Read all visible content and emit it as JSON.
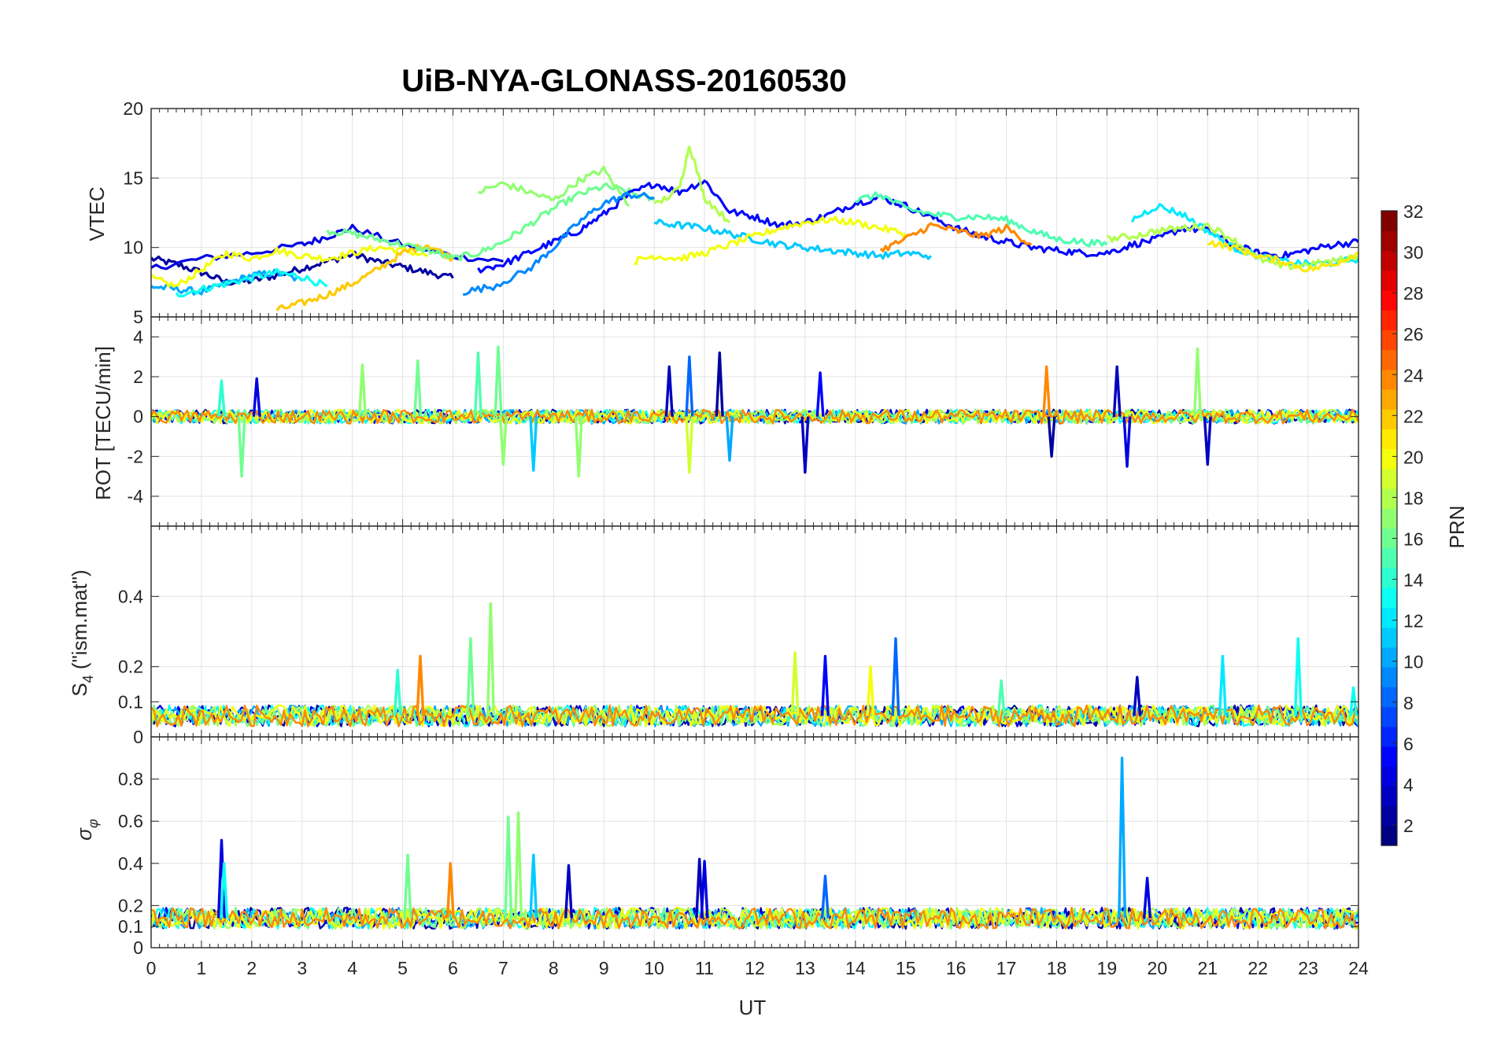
{
  "chart_data": [
    {
      "type": "line",
      "panel": "vtec",
      "title": "UiB-NYA-GLONASS-20160530",
      "xlabel": "",
      "ylabel": "VTEC",
      "xlim": [
        0,
        24
      ],
      "ylim": [
        5,
        20
      ],
      "yticks": [
        "5",
        "10",
        "15",
        "20"
      ],
      "grid": true,
      "series": [
        {
          "prn": 2,
          "x": [
            0,
            0.5,
            1,
            1.5,
            2,
            2.5,
            3,
            3.5,
            4,
            4.5,
            5,
            5.5,
            6
          ],
          "y": [
            9.2,
            8.8,
            8.2,
            7.5,
            7.6,
            8.0,
            8.5,
            9.0,
            9.5,
            9.0,
            8.6,
            8.2,
            7.8
          ]
        },
        {
          "prn": 4,
          "x": [
            0,
            1,
            2,
            3,
            3.5,
            4,
            5,
            6,
            7
          ],
          "y": [
            8.5,
            9.2,
            9.6,
            10.2,
            10.8,
            11.4,
            10.2,
            9.4,
            9.0
          ]
        },
        {
          "prn": 10,
          "x": [
            0,
            0.5,
            1,
            1.5,
            2,
            2.5,
            3
          ],
          "y": [
            7.2,
            7.0,
            6.8,
            7.4,
            8.0,
            8.2,
            7.6
          ]
        },
        {
          "prn": 13,
          "x": [
            0.5,
            1,
            1.5,
            2,
            2.5,
            3,
            3.5
          ],
          "y": [
            6.6,
            7.0,
            7.4,
            7.8,
            8.2,
            7.9,
            7.2
          ]
        },
        {
          "prn": 20,
          "x": [
            0,
            0.5,
            1,
            1.5,
            2,
            2.5,
            3,
            3.5,
            4,
            4.5,
            5,
            5.5
          ],
          "y": [
            7.8,
            7.2,
            8.4,
            9.6,
            9.2,
            9.8,
            9.4,
            9.2,
            9.6,
            10.0,
            9.8,
            9.4
          ]
        },
        {
          "prn": 22,
          "x": [
            2.5,
            3,
            3.5,
            4,
            4.5,
            5,
            5.5,
            6
          ],
          "y": [
            5.5,
            6.0,
            6.6,
            7.4,
            8.4,
            9.6,
            10.2,
            9.2
          ]
        },
        {
          "prn": 16,
          "x": [
            3.5,
            4,
            4.5,
            5,
            5.5,
            6,
            6.5,
            7,
            7.5,
            8,
            8.5,
            9,
            9.5,
            10
          ],
          "y": [
            11.2,
            11.0,
            10.6,
            10.2,
            9.8,
            9.2,
            9.6,
            10.4,
            11.6,
            12.8,
            13.8,
            14.4,
            14.0,
            13.4
          ]
        },
        {
          "prn": 5,
          "x": [
            6.5,
            7,
            7.5,
            8,
            8.5,
            9,
            9.5,
            10,
            10.5,
            11,
            11.5,
            12,
            12.5,
            13,
            13.5,
            14,
            14.5,
            15,
            15.5,
            16,
            16.5,
            17,
            17.5,
            18,
            18.5,
            19,
            19.5,
            20,
            20.5,
            21,
            21.5,
            22,
            22.5,
            23,
            23.5,
            24
          ],
          "y": [
            8.4,
            8.8,
            9.6,
            10.4,
            11.2,
            12.4,
            13.8,
            14.6,
            14.0,
            14.8,
            12.6,
            12.2,
            11.6,
            11.8,
            12.4,
            13.2,
            13.6,
            13.0,
            12.2,
            11.4,
            10.8,
            10.4,
            10.0,
            9.8,
            9.6,
            9.6,
            10.2,
            10.6,
            11.4,
            11.2,
            10.2,
            9.6,
            9.4,
            9.8,
            10.2,
            10.4
          ]
        },
        {
          "prn": 17,
          "x": [
            6.5,
            7,
            7.5,
            8,
            8.5,
            9,
            9.5
          ],
          "y": [
            14.0,
            14.6,
            14.0,
            13.4,
            14.8,
            15.6,
            13.0
          ]
        },
        {
          "prn": 9,
          "x": [
            6.2,
            6.8,
            7.5,
            8,
            8.5,
            9,
            9.5,
            10
          ],
          "y": [
            6.8,
            7.2,
            8.4,
            10.0,
            11.8,
            13.2,
            13.8,
            13.6
          ]
        },
        {
          "prn": 11,
          "x": [
            10,
            10.5,
            11,
            11.5,
            12,
            12.5,
            13,
            13.5,
            14,
            14.5,
            15,
            15.5
          ],
          "y": [
            11.8,
            11.6,
            11.4,
            11.0,
            10.6,
            10.2,
            10.0,
            9.8,
            9.6,
            9.4,
            9.6,
            9.4
          ]
        },
        {
          "prn": 18,
          "x": [
            10,
            10.5,
            10.7,
            11,
            11.5
          ],
          "y": [
            13.0,
            14.2,
            17.4,
            13.6,
            11.8
          ]
        },
        {
          "prn": 20,
          "x": [
            9.6,
            10,
            10.5,
            11,
            11.5,
            12,
            12.5,
            13,
            13.5,
            14,
            14.5,
            15
          ],
          "y": [
            9.0,
            9.4,
            9.2,
            9.6,
            10.2,
            10.8,
            11.4,
            11.8,
            12.0,
            11.8,
            11.4,
            11.0
          ]
        },
        {
          "prn": 24,
          "x": [
            14.5,
            15,
            15.5,
            16,
            16.5,
            17,
            17.5
          ],
          "y": [
            9.8,
            10.6,
            11.6,
            11.2,
            10.8,
            11.4,
            10.2
          ]
        },
        {
          "prn": 15,
          "x": [
            14,
            14.5,
            15,
            15.5,
            16,
            16.5,
            17,
            17.5,
            18,
            18.5,
            19
          ],
          "y": [
            13.4,
            13.8,
            12.8,
            12.4,
            12.2,
            12.2,
            12.0,
            11.2,
            10.6,
            10.4,
            10.2
          ]
        },
        {
          "prn": 12,
          "x": [
            19.5,
            20,
            20.5,
            21,
            21.5,
            22,
            22.5,
            23,
            23.5,
            24
          ],
          "y": [
            12.0,
            13.0,
            12.4,
            11.2,
            10.0,
            9.4,
            9.0,
            8.8,
            8.9,
            9.2
          ]
        },
        {
          "prn": 18,
          "x": [
            19,
            19.5,
            20,
            20.5,
            21,
            21.5,
            22,
            22.5,
            23,
            23.5,
            24
          ],
          "y": [
            10.6,
            10.8,
            11.2,
            11.4,
            11.6,
            10.6,
            9.2,
            8.6,
            8.8,
            9.0,
            9.4
          ]
        },
        {
          "prn": 21,
          "x": [
            21,
            21.5,
            22,
            22.5,
            23,
            23.5,
            24
          ],
          "y": [
            10.4,
            10.0,
            9.4,
            9.0,
            8.4,
            8.8,
            9.6
          ]
        }
      ]
    },
    {
      "type": "line",
      "panel": "rot",
      "xlabel": "",
      "ylabel": "ROT [TECU/min]",
      "xlim": [
        0,
        24
      ],
      "ylim": [
        -5.5,
        5
      ],
      "yticks": [
        "-4",
        "-2",
        "0",
        "2",
        "4"
      ],
      "grid": true,
      "peaks": [
        {
          "x": 1.4,
          "y": 1.8,
          "prn": 14
        },
        {
          "x": 1.8,
          "y": -3.0,
          "prn": 16
        },
        {
          "x": 2.1,
          "y": 1.9,
          "prn": 4
        },
        {
          "x": 4.2,
          "y": 2.6,
          "prn": 17
        },
        {
          "x": 5.3,
          "y": 2.8,
          "prn": 16
        },
        {
          "x": 6.5,
          "y": 3.2,
          "prn": 15
        },
        {
          "x": 6.9,
          "y": 3.5,
          "prn": 16
        },
        {
          "x": 7.0,
          "y": -2.4,
          "prn": 17
        },
        {
          "x": 7.6,
          "y": -2.7,
          "prn": 11
        },
        {
          "x": 8.5,
          "y": -3.0,
          "prn": 17
        },
        {
          "x": 10.3,
          "y": 2.5,
          "prn": 3
        },
        {
          "x": 10.7,
          "y": 3.0,
          "prn": 8
        },
        {
          "x": 10.7,
          "y": -2.8,
          "prn": 19
        },
        {
          "x": 11.5,
          "y": -2.2,
          "prn": 10
        },
        {
          "x": 11.3,
          "y": 3.2,
          "prn": 2
        },
        {
          "x": 13.0,
          "y": -2.8,
          "prn": 3
        },
        {
          "x": 13.3,
          "y": 2.2,
          "prn": 5
        },
        {
          "x": 17.8,
          "y": 2.5,
          "prn": 24
        },
        {
          "x": 17.9,
          "y": -2.0,
          "prn": 2
        },
        {
          "x": 19.2,
          "y": 2.5,
          "prn": 3
        },
        {
          "x": 19.4,
          "y": -2.5,
          "prn": 4
        },
        {
          "x": 20.8,
          "y": 3.4,
          "prn": 17
        },
        {
          "x": 21.0,
          "y": -2.4,
          "prn": 3
        }
      ]
    },
    {
      "type": "line",
      "panel": "s4",
      "xlabel": "",
      "ylabel": "S4 (\"ism.mat\")",
      "ylabel_parts": {
        "main": "S",
        "sub": "4",
        "rest": " (\"ism.mat\")"
      },
      "xlim": [
        0,
        24
      ],
      "ylim": [
        0,
        0.6
      ],
      "yticks": [
        "0",
        "0.1",
        "0.2",
        "0.4"
      ],
      "grid": true,
      "peaks": [
        {
          "x": 4.9,
          "y": 0.19,
          "prn": 14
        },
        {
          "x": 5.35,
          "y": 0.23,
          "prn": 24
        },
        {
          "x": 6.35,
          "y": 0.28,
          "prn": 16
        },
        {
          "x": 6.75,
          "y": 0.38,
          "prn": 17
        },
        {
          "x": 12.8,
          "y": 0.24,
          "prn": 19
        },
        {
          "x": 13.4,
          "y": 0.23,
          "prn": 5
        },
        {
          "x": 14.3,
          "y": 0.2,
          "prn": 20
        },
        {
          "x": 14.8,
          "y": 0.28,
          "prn": 8
        },
        {
          "x": 16.9,
          "y": 0.16,
          "prn": 15
        },
        {
          "x": 19.6,
          "y": 0.17,
          "prn": 3
        },
        {
          "x": 21.3,
          "y": 0.23,
          "prn": 12
        },
        {
          "x": 22.8,
          "y": 0.28,
          "prn": 13
        },
        {
          "x": 23.9,
          "y": 0.14,
          "prn": 13
        }
      ]
    },
    {
      "type": "line",
      "panel": "sigma-phi",
      "xlabel": "UT",
      "ylabel": "σφ",
      "ylabel_parts": {
        "main": "σ",
        "sub": "φ"
      },
      "xlim": [
        0,
        24
      ],
      "ylim": [
        0,
        1
      ],
      "yticks": [
        "0",
        "0.1",
        "0.2",
        "0.4",
        "0.6",
        "0.8"
      ],
      "xticks": [
        "0",
        "1",
        "2",
        "3",
        "4",
        "5",
        "6",
        "7",
        "8",
        "9",
        "10",
        "11",
        "12",
        "13",
        "14",
        "15",
        "16",
        "17",
        "18",
        "19",
        "20",
        "21",
        "22",
        "23",
        "24"
      ],
      "grid": true,
      "peaks": [
        {
          "x": 1.4,
          "y": 0.51,
          "prn": 4
        },
        {
          "x": 1.45,
          "y": 0.4,
          "prn": 13
        },
        {
          "x": 5.1,
          "y": 0.44,
          "prn": 16
        },
        {
          "x": 5.95,
          "y": 0.4,
          "prn": 24
        },
        {
          "x": 7.1,
          "y": 0.62,
          "prn": 16
        },
        {
          "x": 7.3,
          "y": 0.64,
          "prn": 17
        },
        {
          "x": 7.6,
          "y": 0.44,
          "prn": 11
        },
        {
          "x": 8.3,
          "y": 0.39,
          "prn": 3
        },
        {
          "x": 10.9,
          "y": 0.42,
          "prn": 3
        },
        {
          "x": 11.0,
          "y": 0.41,
          "prn": 4
        },
        {
          "x": 13.4,
          "y": 0.34,
          "prn": 8
        },
        {
          "x": 19.3,
          "y": 0.9,
          "prn": 10
        },
        {
          "x": 19.8,
          "y": 0.33,
          "prn": 4
        }
      ]
    }
  ],
  "colorbar": {
    "label": "PRN",
    "range": [
      1,
      32
    ],
    "ticks": [
      "2",
      "4",
      "6",
      "8",
      "10",
      "12",
      "14",
      "16",
      "18",
      "20",
      "22",
      "24",
      "26",
      "28",
      "30",
      "32"
    ]
  }
}
